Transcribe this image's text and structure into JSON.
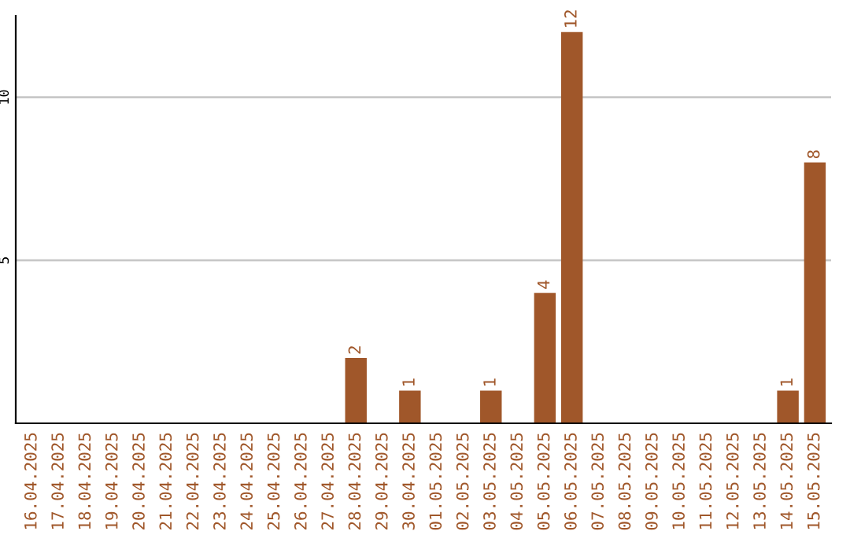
{
  "chart_data": {
    "type": "bar",
    "categories": [
      "16.04.2025",
      "17.04.2025",
      "18.04.2025",
      "19.04.2025",
      "20.04.2025",
      "21.04.2025",
      "22.04.2025",
      "23.04.2025",
      "24.04.2025",
      "25.04.2025",
      "26.04.2025",
      "27.04.2025",
      "28.04.2025",
      "29.04.2025",
      "30.04.2025",
      "01.05.2025",
      "02.05.2025",
      "03.05.2025",
      "04.05.2025",
      "05.05.2025",
      "06.05.2025",
      "07.05.2025",
      "08.05.2025",
      "09.05.2025",
      "10.05.2025",
      "11.05.2025",
      "12.05.2025",
      "13.05.2025",
      "14.05.2025",
      "15.05.2025"
    ],
    "values": [
      0,
      0,
      0,
      0,
      0,
      0,
      0,
      0,
      0,
      0,
      0,
      0,
      2,
      0,
      1,
      0,
      0,
      1,
      0,
      4,
      12,
      0,
      0,
      0,
      0,
      0,
      0,
      0,
      1,
      8
    ],
    "value_labels": [
      null,
      null,
      null,
      null,
      null,
      null,
      null,
      null,
      null,
      null,
      null,
      null,
      "2",
      null,
      "1",
      null,
      null,
      "1",
      null,
      "4",
      "12",
      null,
      null,
      null,
      null,
      null,
      null,
      null,
      "1",
      "8"
    ],
    "color": "#a0572a",
    "ylim": [
      0,
      12.5
    ],
    "yticks": [
      5,
      10
    ],
    "grid": "y",
    "legend": false
  }
}
